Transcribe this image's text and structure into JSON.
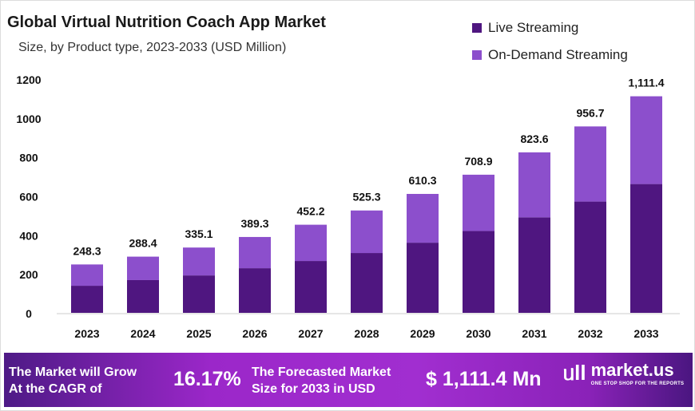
{
  "chart_data": {
    "type": "bar",
    "stacked": true,
    "title": "Global Virtual Nutrition Coach App Market",
    "subtitle": "Size, by Product type, 2023-2033 (USD Million)",
    "categories": [
      "2023",
      "2024",
      "2025",
      "2026",
      "2027",
      "2028",
      "2029",
      "2030",
      "2031",
      "2032",
      "2033"
    ],
    "series": [
      {
        "name": "Live Streaming",
        "color": "#4f1680",
        "values": [
          139,
          168,
          192,
          229,
          266,
          307,
          360,
          420,
          490,
          571,
          661
        ]
      },
      {
        "name": "On-Demand Streaming",
        "color": "#8c4fcc",
        "values": [
          109.3,
          120.4,
          143.1,
          160.3,
          186.2,
          218.3,
          250.3,
          288.9,
          333.6,
          385.7,
          450.4
        ]
      }
    ],
    "totals_labels": [
      "248.3",
      "288.4",
      "335.1",
      "389.3",
      "452.2",
      "525.3",
      "610.3",
      "708.9",
      "823.6",
      "956.7",
      "1,111.4"
    ],
    "yticks": [
      "0",
      "200",
      "400",
      "600",
      "800",
      "1000",
      "1200"
    ],
    "ylim": [
      0,
      1200
    ],
    "grid": false,
    "legend_position": "top-right"
  },
  "banner": {
    "cagr_text_1": "The Market will Grow",
    "cagr_text_2": "At the CAGR of",
    "cagr_value": "16.17%",
    "forecast_text_1": "The Forecasted Market",
    "forecast_text_2": "Size for 2033 in USD",
    "forecast_value": "$ 1,111.4 Mn",
    "logo_name": "market.us",
    "logo_tagline": "ONE STOP SHOP FOR THE REPORTS"
  }
}
